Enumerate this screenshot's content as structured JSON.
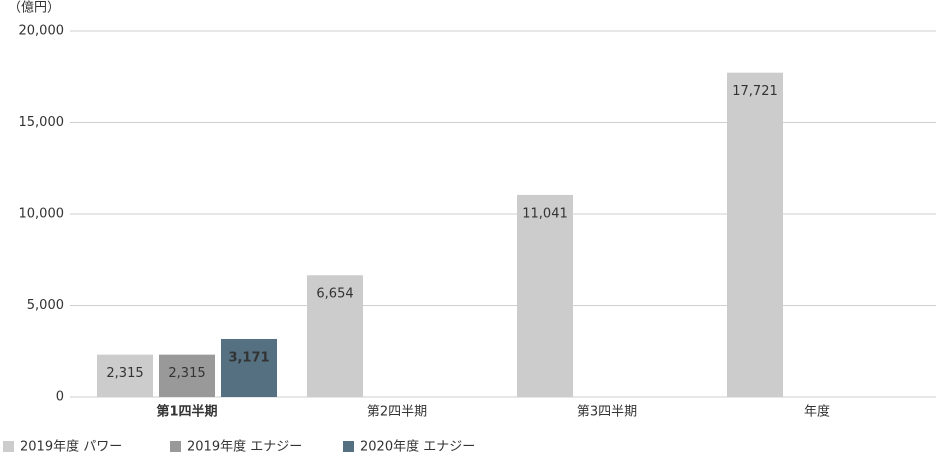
{
  "chart_data": {
    "type": "bar",
    "y_label": "（億円）",
    "categories": [
      "第1四半期",
      "第2四半期",
      "第3四半期",
      "年度"
    ],
    "highlight_category": 0,
    "highlight_color": "#4f6f80",
    "series": [
      {
        "name": "2019年度 パワー",
        "color": "#cccccc",
        "label_color": "#222222",
        "values": [
          2315,
          6654,
          11041,
          17721
        ],
        "value_labels": [
          "2,315",
          "6,654",
          "11,041",
          "17,721"
        ]
      },
      {
        "name": "2019年度 エナジー",
        "color": "#999999",
        "label_color": "#222222",
        "values": [
          2315,
          null,
          null,
          null
        ],
        "value_labels": [
          "2,315",
          null,
          null,
          null
        ]
      },
      {
        "name": "2020年度 エナジー",
        "color": "#557080",
        "label_color": "#ffffff",
        "values": [
          3171,
          null,
          null,
          null
        ],
        "value_labels": [
          "3,171",
          null,
          null,
          null
        ]
      }
    ],
    "ylim": [
      0,
      20000
    ],
    "yticks": [
      0,
      {
        "value": 5000,
        "label": "5,000"
      },
      {
        "value": 10000,
        "label": "10,000"
      },
      {
        "value": 15000,
        "label": "15,000"
      },
      {
        "value": 20000,
        "label": "20,000"
      }
    ],
    "grid": true
  }
}
